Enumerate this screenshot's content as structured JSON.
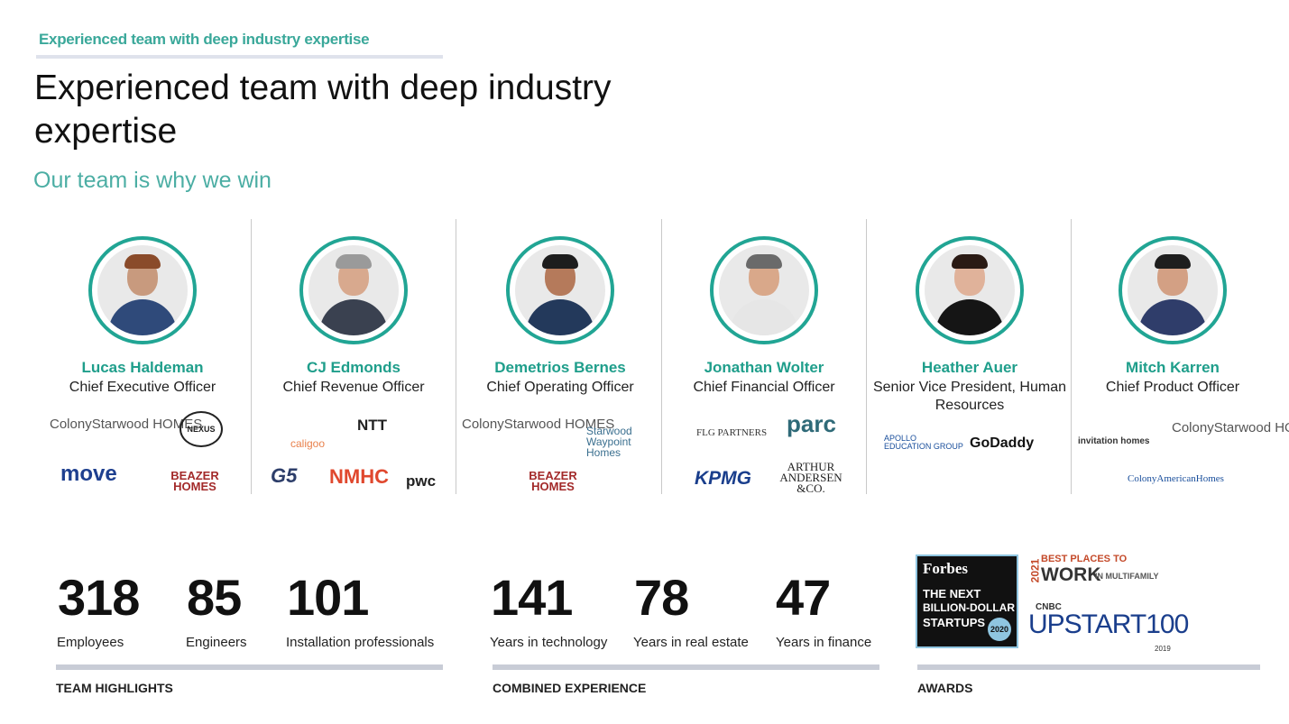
{
  "header": {
    "kicker": "Experienced team with deep industry expertise",
    "title": "Experienced team with deep industry expertise",
    "subtitle": "Our team is why we win"
  },
  "people": [
    {
      "name": "Lucas Haldeman",
      "role": "Chief Executive Officer",
      "logos": [
        "ColonyStarwood HOMES",
        "NEXUS",
        "move",
        "BEAZER HOMES"
      ]
    },
    {
      "name": "CJ Edmonds",
      "role": "Chief Revenue Officer",
      "logos": [
        "caligoo",
        "NTT",
        "G5",
        "NMHC",
        "pwc"
      ]
    },
    {
      "name": "Demetrios Bernes",
      "role": "Chief Operating Officer",
      "logos": [
        "ColonyStarwood HOMES",
        "Starwood Waypoint Homes",
        "BEAZER HOMES"
      ]
    },
    {
      "name": "Jonathan Wolter",
      "role": "Chief Financial Officer",
      "logos": [
        "FLG PARTNERS",
        "parc",
        "KPMG",
        "ARTHUR ANDERSEN &CO."
      ]
    },
    {
      "name": "Heather Auer",
      "role": "Senior Vice President, Human Resources",
      "logos": [
        "APOLLO EDUCATION GROUP",
        "GoDaddy"
      ]
    },
    {
      "name": "Mitch Karren",
      "role": "Chief Product Officer",
      "logos": [
        "invitation homes",
        "ColonyStarwood HOMES",
        "ColonyAmericanHomes"
      ]
    }
  ],
  "team_highlights": {
    "label": "TEAM HIGHLIGHTS",
    "stats": [
      {
        "value": "318",
        "label": "Employees"
      },
      {
        "value": "85",
        "label": "Engineers"
      },
      {
        "value": "101",
        "label": "Installation professionals"
      }
    ]
  },
  "combined_experience": {
    "label": "COMBINED EXPERIENCE",
    "stats": [
      {
        "value": "141",
        "label": "Years in technology"
      },
      {
        "value": "78",
        "label": "Years in real estate"
      },
      {
        "value": "47",
        "label": "Years in finance"
      }
    ]
  },
  "awards": {
    "label": "AWARDS",
    "forbes": {
      "brand": "Forbes",
      "line1": "THE NEXT",
      "line2": "BILLION-DOLLAR",
      "line3": "STARTUPS",
      "year": "2020"
    },
    "bestplaces": {
      "year": "2021",
      "text1": "BEST PLACES TO",
      "text2": "WORK",
      "text3": "IN MULTIFAMILY"
    },
    "cnbc": {
      "brand": "CNBC",
      "text": "UPSTART100",
      "year": "2019"
    }
  },
  "colors": {
    "accent": "#21a594",
    "kicker": "#3aa89a"
  }
}
